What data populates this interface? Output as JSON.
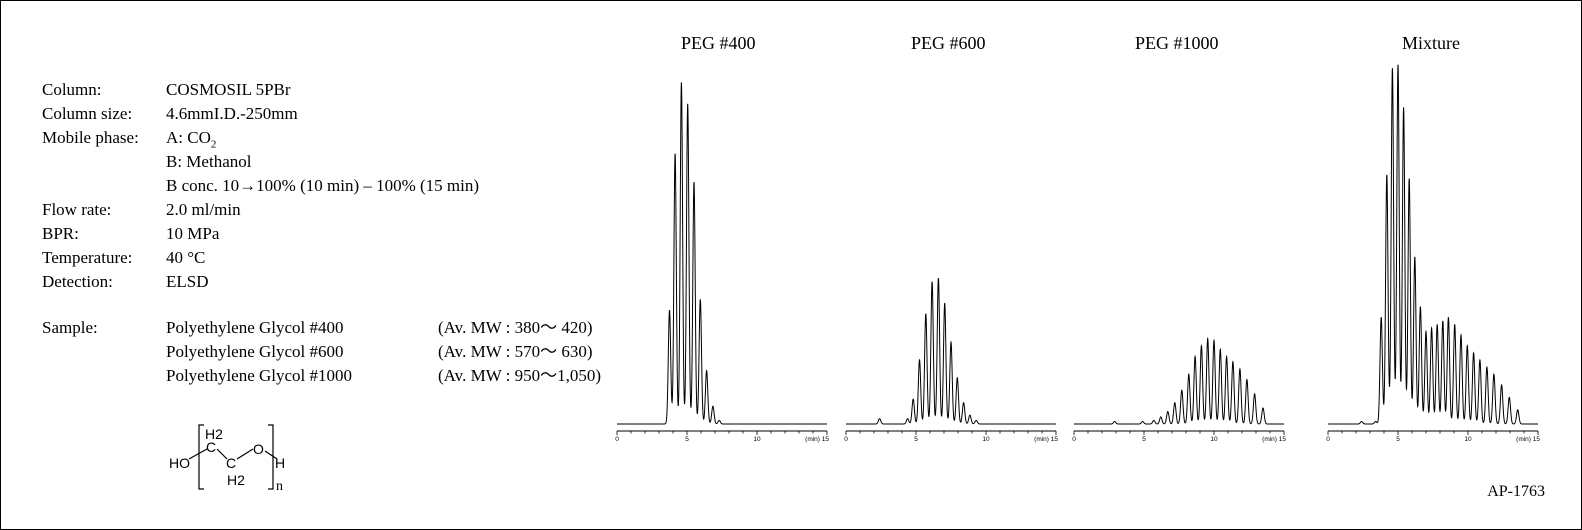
{
  "conditions": {
    "column_label": "Column:",
    "column_value": "COSMOSIL  5PBr",
    "column_size_label": "Column size:",
    "column_size_value": "4.6mmI.D.-250mm",
    "mobile_phase_label": "Mobile phase:",
    "mobile_phase_a_prefix": "A: CO",
    "mobile_phase_a_subscript": "2",
    "mobile_phase_b": "B: Methanol",
    "gradient": "B conc. 10→100% (10 min) – 100% (15 min)",
    "flow_rate_label": "Flow rate:",
    "flow_rate_value": "2.0 ml/min",
    "bpr_label": "BPR:",
    "bpr_value": "10 MPa",
    "temperature_label": "Temperature:",
    "temperature_value": "40 °C",
    "detection_label": "Detection:",
    "detection_value": "ELSD"
  },
  "sample": {
    "label": "Sample:",
    "items": [
      {
        "name": "Polyethylene Glycol #400",
        "mw": "(Av. MW : 380～  420)"
      },
      {
        "name": "Polyethylene Glycol #600",
        "mw": "(Av. MW : 570～  630)"
      },
      {
        "name": "Polyethylene Glycol #1000",
        "mw": "(Av. MW : 950～1,050)"
      }
    ]
  },
  "structure": {
    "h2_top": "H2",
    "h2_bottom": "H2",
    "ho": "HO",
    "c1": "C",
    "c2": "C",
    "o": "O",
    "h": "H",
    "n": "n"
  },
  "reference": "AP-1763",
  "chart_data": [
    {
      "type": "line",
      "title": "PEG #400",
      "x_unit_label": "(min)",
      "xlim": [
        0,
        15
      ],
      "x_ticks": [
        0,
        5,
        10,
        15
      ],
      "ylim": [
        0,
        100
      ],
      "peaks": [
        {
          "t": 3.75,
          "h": 32
        },
        {
          "t": 4.15,
          "h": 76
        },
        {
          "t": 4.6,
          "h": 96
        },
        {
          "t": 5.05,
          "h": 90
        },
        {
          "t": 5.5,
          "h": 68
        },
        {
          "t": 5.95,
          "h": 35
        },
        {
          "t": 6.4,
          "h": 15
        },
        {
          "t": 6.85,
          "h": 5
        },
        {
          "t": 7.3,
          "h": 1
        }
      ]
    },
    {
      "type": "line",
      "title": "PEG #600",
      "x_unit_label": "(min)",
      "xlim": [
        0,
        15
      ],
      "x_ticks": [
        0,
        5,
        10,
        15
      ],
      "ylim": [
        0,
        100
      ],
      "peaks": [
        {
          "t": 2.4,
          "h": 1.5
        },
        {
          "t": 4.4,
          "h": 1.5
        },
        {
          "t": 4.8,
          "h": 7
        },
        {
          "t": 5.25,
          "h": 18
        },
        {
          "t": 5.7,
          "h": 31
        },
        {
          "t": 6.15,
          "h": 40
        },
        {
          "t": 6.6,
          "h": 41
        },
        {
          "t": 7.05,
          "h": 34
        },
        {
          "t": 7.5,
          "h": 23
        },
        {
          "t": 7.95,
          "h": 13
        },
        {
          "t": 8.4,
          "h": 6
        },
        {
          "t": 8.85,
          "h": 2.5
        },
        {
          "t": 9.3,
          "h": 1
        }
      ]
    },
    {
      "type": "line",
      "title": "PEG #1000",
      "x_unit_label": "(min)",
      "xlim": [
        0,
        15
      ],
      "x_ticks": [
        0,
        5,
        10,
        15
      ],
      "ylim": [
        0,
        100
      ],
      "peaks": [
        {
          "t": 2.9,
          "h": 0.7
        },
        {
          "t": 4.9,
          "h": 0.7
        },
        {
          "t": 5.7,
          "h": 1
        },
        {
          "t": 6.2,
          "h": 2
        },
        {
          "t": 6.7,
          "h": 3.5
        },
        {
          "t": 7.2,
          "h": 6
        },
        {
          "t": 7.7,
          "h": 9.5
        },
        {
          "t": 8.2,
          "h": 14
        },
        {
          "t": 8.65,
          "h": 19
        },
        {
          "t": 9.1,
          "h": 22
        },
        {
          "t": 9.55,
          "h": 24
        },
        {
          "t": 10.0,
          "h": 23.5
        },
        {
          "t": 10.45,
          "h": 21
        },
        {
          "t": 10.9,
          "h": 19
        },
        {
          "t": 11.35,
          "h": 17.5
        },
        {
          "t": 11.85,
          "h": 15.5
        },
        {
          "t": 12.35,
          "h": 12.5
        },
        {
          "t": 12.9,
          "h": 8.5
        },
        {
          "t": 13.5,
          "h": 4.5
        }
      ]
    },
    {
      "type": "line",
      "title": "Mixture",
      "x_unit_label": "(min)",
      "xlim": [
        0,
        15
      ],
      "x_ticks": [
        0,
        5,
        10,
        15
      ],
      "ylim": [
        0,
        100
      ],
      "peaks": [
        {
          "t": 2.4,
          "h": 0.7
        },
        {
          "t": 3.4,
          "h": 0.7
        },
        {
          "t": 3.8,
          "h": 30
        },
        {
          "t": 4.2,
          "h": 70
        },
        {
          "t": 4.6,
          "h": 100
        },
        {
          "t": 5.0,
          "h": 101
        },
        {
          "t": 5.4,
          "h": 89
        },
        {
          "t": 5.8,
          "h": 69
        },
        {
          "t": 6.2,
          "h": 47
        },
        {
          "t": 6.6,
          "h": 33
        },
        {
          "t": 7.0,
          "h": 26
        },
        {
          "t": 7.4,
          "h": 27
        },
        {
          "t": 7.8,
          "h": 28
        },
        {
          "t": 8.2,
          "h": 29
        },
        {
          "t": 8.6,
          "h": 30
        },
        {
          "t": 9.05,
          "h": 28
        },
        {
          "t": 9.5,
          "h": 25
        },
        {
          "t": 9.95,
          "h": 22
        },
        {
          "t": 10.4,
          "h": 20
        },
        {
          "t": 10.85,
          "h": 18
        },
        {
          "t": 11.35,
          "h": 16
        },
        {
          "t": 11.85,
          "h": 14
        },
        {
          "t": 12.4,
          "h": 11
        },
        {
          "t": 12.95,
          "h": 7.5
        },
        {
          "t": 13.55,
          "h": 4
        }
      ]
    }
  ]
}
